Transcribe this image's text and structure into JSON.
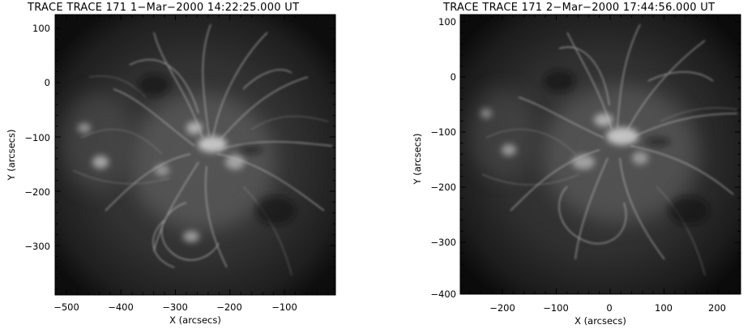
{
  "panels": [
    {
      "title": "TRACE TRACE 171   1−Mar−2000 14:22:25.000 UT",
      "xlabel": "X (arcsecs)",
      "ylabel": "Y (arcsecs)",
      "x_ticks": [
        "−500",
        "−400",
        "−300",
        "−200",
        "−100"
      ],
      "y_ticks": [
        "100",
        "0",
        "−100",
        "−200",
        "−300"
      ],
      "x_range_arcsec": [
        -530,
        -10
      ],
      "y_range_arcsec": [
        -395,
        110
      ]
    },
    {
      "title": "TRACE TRACE 171   2−Mar−2000 17:44:56.000 UT",
      "xlabel": "X (arcsecs)",
      "ylabel": "Y (arcsecs)",
      "x_ticks": [
        "−200",
        "−100",
        "0",
        "100",
        "200"
      ],
      "y_ticks": [
        "100",
        "0",
        "−100",
        "−200",
        "−300",
        "−400"
      ],
      "x_range_arcsec": [
        -275,
        245
      ],
      "y_range_arcsec": [
        -405,
        103
      ]
    }
  ],
  "colors": {
    "background": "#ffffff",
    "image_dark": "#141414",
    "image_mid": "#3a3a3a",
    "image_bright": "#e6e6e6"
  }
}
